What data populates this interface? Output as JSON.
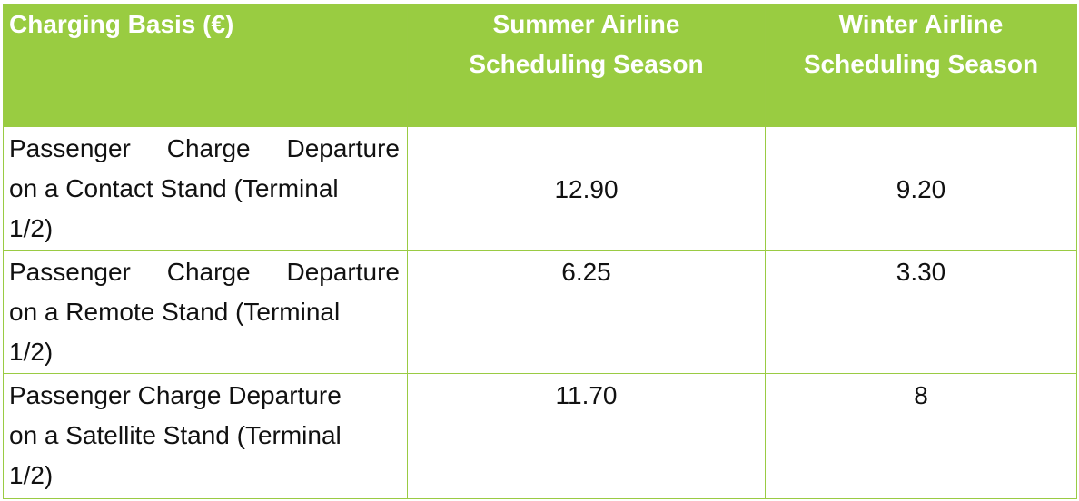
{
  "table": {
    "header": {
      "col1": "Charging Basis (€)",
      "col2_line1": "Summer Airline",
      "col2_line2": "Scheduling Season",
      "col3_line1": "Winter Airline",
      "col3_line2": "Scheduling Season"
    },
    "rows": [
      {
        "label_line1": "Passenger Charge Departure",
        "label_line2": "on a Contact Stand (Terminal",
        "label_line3": "1/2)",
        "summer": "12.90",
        "winter": "9.20"
      },
      {
        "label_line1": "Passenger Charge Departure",
        "label_line2": "on a Remote Stand (Terminal",
        "label_line3": "1/2)",
        "summer": "6.25",
        "winter": "3.30"
      },
      {
        "label_line1": "Passenger Charge Departure",
        "label_line2": "on a Satellite Stand (Terminal",
        "label_line3": "1/2)",
        "summer": "11.70",
        "winter": "8"
      }
    ],
    "colors": {
      "header_background": "#99CC41",
      "header_text": "#ffffff",
      "border": "#9ACB43",
      "body_text": "#111111"
    }
  }
}
